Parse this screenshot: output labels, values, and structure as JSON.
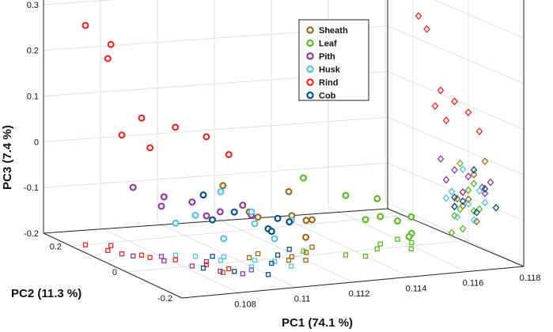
{
  "chart_data": {
    "type": "scatter",
    "title": "",
    "xlabel": "PC1 (74.1 %)",
    "ylabel": "PC2 (11.3 %)",
    "zlabel": "PC3 (7.4 %)",
    "xlim": [
      0.106,
      0.118
    ],
    "ylim": [
      -0.2,
      0.3
    ],
    "zlim": [
      -0.2,
      0.35
    ],
    "x_ticks": [
      "0.108",
      "0.11",
      "0.112",
      "0.114",
      "0.116",
      "0.118"
    ],
    "y_ticks": [
      "-0.2",
      "0",
      "0.2"
    ],
    "z_ticks": [
      "-0.2",
      "-0.1",
      "0",
      "0.1",
      "0.2",
      "0.3"
    ],
    "legend_position": "top-right",
    "marker_styles": {
      "3d_points": "circle",
      "projection_pc1_pc2_floor": "square",
      "projection_pc2_pc3_side": "diamond"
    },
    "series": [
      {
        "name": "Sheath",
        "color": "#9b6a1e",
        "points": [
          [
            0.1115,
            -0.02,
            -0.05
          ],
          [
            0.1118,
            0.0,
            -0.11
          ],
          [
            0.1125,
            0.02,
            -0.13
          ],
          [
            0.113,
            0.05,
            -0.14
          ],
          [
            0.112,
            -0.03,
            -0.15
          ],
          [
            0.111,
            0.04,
            -0.12
          ],
          [
            0.1088,
            -0.06,
            -0.01
          ],
          [
            0.1105,
            0.02,
            -0.1
          ]
        ]
      },
      {
        "name": "Leaf",
        "color": "#5db82b",
        "points": [
          [
            0.1125,
            0.03,
            -0.04
          ],
          [
            0.1135,
            -0.02,
            -0.07
          ],
          [
            0.1148,
            0.0,
            -0.09
          ],
          [
            0.116,
            0.05,
            -0.16
          ],
          [
            0.1162,
            0.02,
            -0.18
          ],
          [
            0.1165,
            0.06,
            -0.2
          ],
          [
            0.114,
            -0.04,
            -0.12
          ],
          [
            0.1152,
            0.03,
            -0.14
          ],
          [
            0.1158,
            -0.02,
            -0.13
          ]
        ]
      },
      {
        "name": "Pith",
        "color": "#8e3aa1",
        "points": [
          [
            0.1072,
            0.1,
            -0.05
          ],
          [
            0.1078,
            0.05,
            -0.06
          ],
          [
            0.1083,
            0.0,
            -0.06
          ],
          [
            0.1088,
            -0.05,
            -0.07
          ],
          [
            0.1093,
            -0.08,
            -0.05
          ],
          [
            0.108,
            0.08,
            -0.09
          ],
          [
            0.109,
            0.02,
            -0.1
          ],
          [
            0.1098,
            -0.06,
            -0.08
          ]
        ]
      },
      {
        "name": "Husk",
        "color": "#5bc1de",
        "points": [
          [
            0.1095,
            0.02,
            -0.05
          ],
          [
            0.11,
            -0.04,
            -0.08
          ],
          [
            0.109,
            0.06,
            -0.11
          ],
          [
            0.1105,
            0.0,
            -0.12
          ],
          [
            0.111,
            -0.02,
            -0.15
          ],
          [
            0.1098,
            0.04,
            -0.16
          ],
          [
            0.1085,
            0.08,
            -0.13
          ],
          [
            0.1112,
            -0.06,
            -0.1
          ]
        ]
      },
      {
        "name": "Rind",
        "color": "#e32b27",
        "points": [
          [
            0.1065,
            0.2,
            0.28
          ],
          [
            0.1072,
            0.18,
            0.24
          ],
          [
            0.1068,
            0.15,
            0.22
          ],
          [
            0.1075,
            0.1,
            0.1
          ],
          [
            0.1082,
            0.05,
            0.09
          ],
          [
            0.1088,
            0.0,
            0.08
          ],
          [
            0.107,
            0.12,
            0.06
          ],
          [
            0.1076,
            0.08,
            0.04
          ],
          [
            0.1092,
            -0.04,
            0.05
          ]
        ]
      },
      {
        "name": "Cob",
        "color": "#0a4e86",
        "points": [
          [
            0.1085,
            -0.02,
            -0.04
          ],
          [
            0.1092,
            -0.06,
            -0.07
          ],
          [
            0.11,
            -0.1,
            -0.1
          ],
          [
            0.1108,
            -0.03,
            -0.13
          ],
          [
            0.1115,
            0.02,
            -0.12
          ],
          [
            0.1122,
            0.05,
            -0.14
          ],
          [
            0.1095,
            0.05,
            -0.12
          ]
        ]
      }
    ]
  }
}
